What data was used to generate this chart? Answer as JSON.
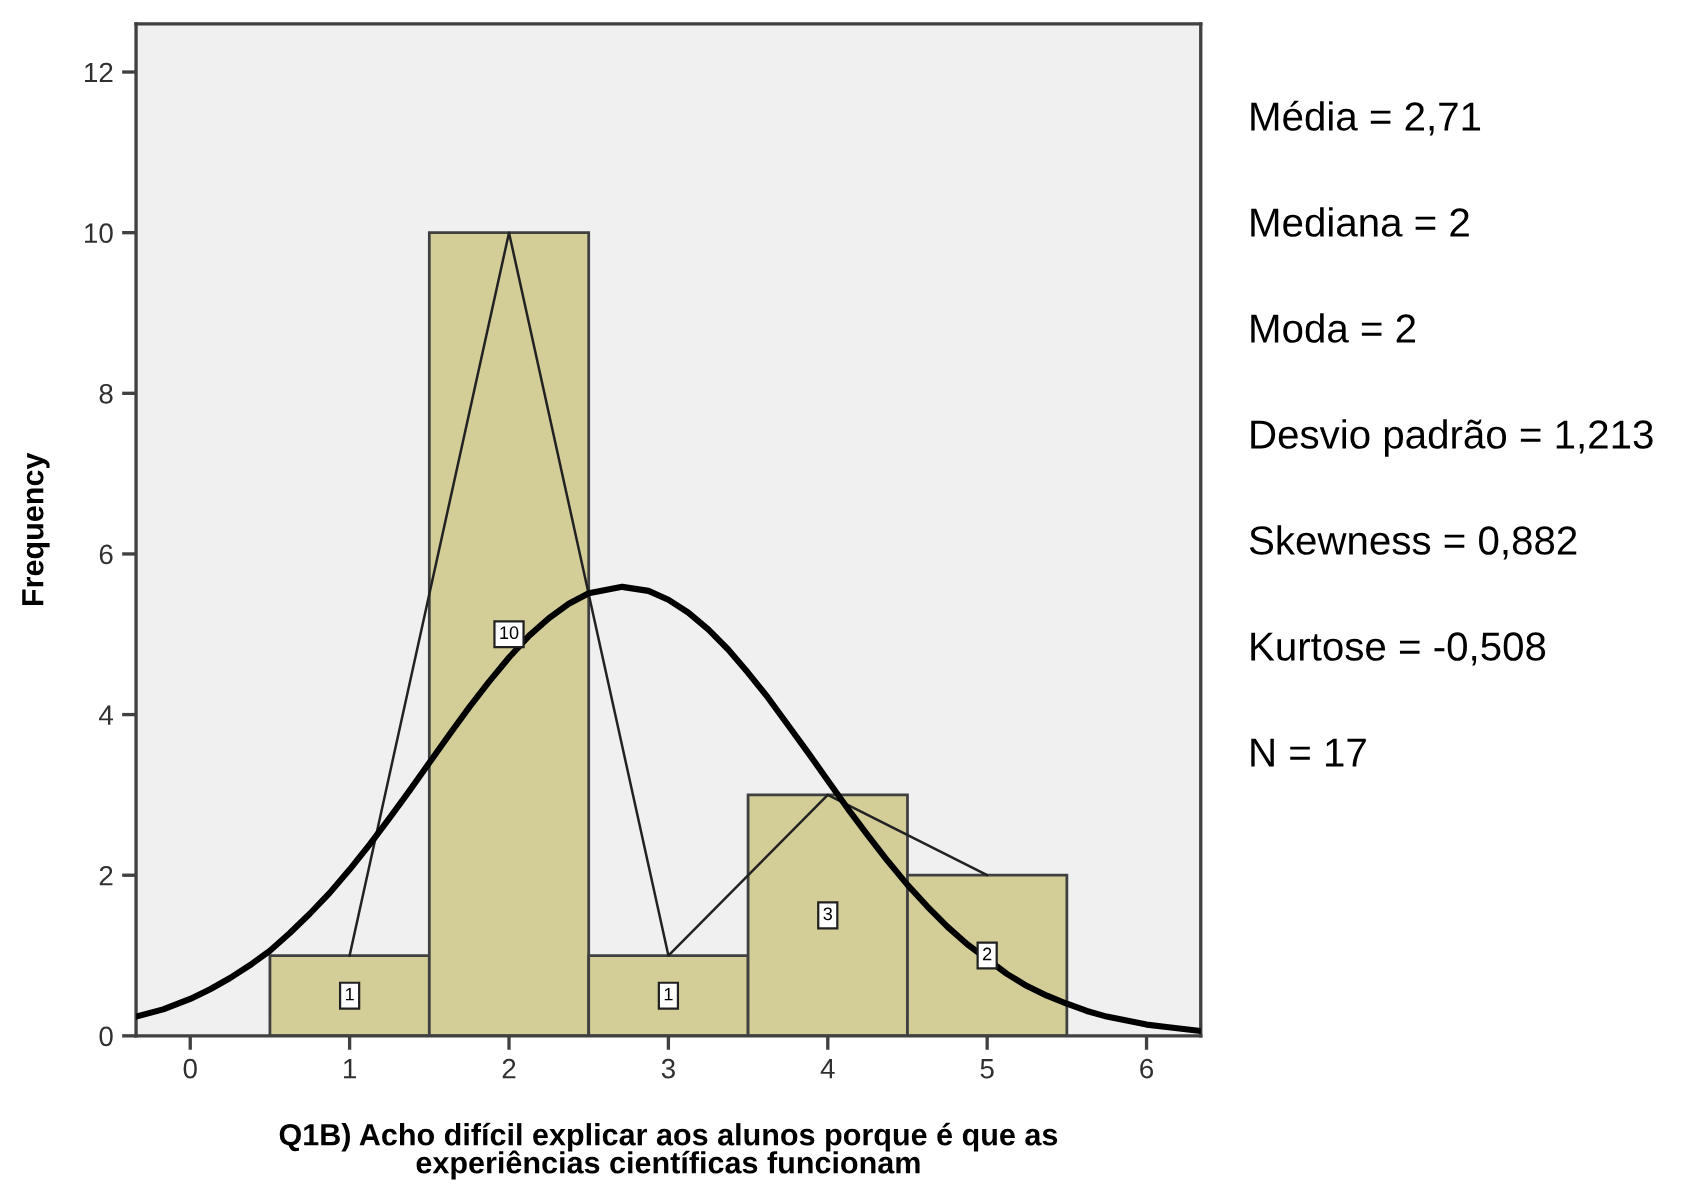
{
  "chart_data": {
    "type": "histogram",
    "xlabel": "Q1B) Acho difícil explicar aos alunos porque é que as\nexperiências científicas funcionam",
    "ylabel": "Frequency",
    "bins": [
      0.5,
      1.5,
      2.5,
      3.5,
      4.5,
      5.5
    ],
    "values": [
      1,
      10,
      1,
      3,
      2
    ],
    "value_labels": [
      "1",
      "10",
      "1",
      "3",
      "2"
    ],
    "color": "#d3ce98",
    "series": [
      {
        "type": "line",
        "x": [
          1,
          2,
          3,
          4,
          5
        ],
        "values": [
          1,
          10,
          1,
          3,
          2
        ],
        "color": "#222222"
      },
      {
        "type": "line",
        "x": [
          -0.34,
          -0.17,
          0,
          0.125,
          0.25,
          0.375,
          0.5,
          0.625,
          0.75,
          0.875,
          1.0,
          1.125,
          1.25,
          1.375,
          1.5,
          1.625,
          1.75,
          1.875,
          2.0,
          2.125,
          2.25,
          2.375,
          2.5,
          2.71,
          2.875,
          3.0,
          3.125,
          3.25,
          3.375,
          3.5,
          3.625,
          3.75,
          3.875,
          4.0,
          4.125,
          4.25,
          4.375,
          4.5,
          4.625,
          4.75,
          4.875,
          5.125,
          5.25,
          5.375,
          5.5,
          5.625,
          5.75,
          5.875,
          6.0,
          6.125,
          6.34
        ],
        "values": [
          0.24,
          0.33,
          0.46,
          0.58,
          0.72,
          0.88,
          1.06,
          1.28,
          1.52,
          1.78,
          2.07,
          2.38,
          2.71,
          3.05,
          3.4,
          3.75,
          4.09,
          4.41,
          4.71,
          4.98,
          5.2,
          5.38,
          5.51,
          5.59,
          5.54,
          5.43,
          5.27,
          5.06,
          4.81,
          4.52,
          4.21,
          3.87,
          3.53,
          3.18,
          2.83,
          2.5,
          2.18,
          1.88,
          1.61,
          1.36,
          1.14,
          0.77,
          0.62,
          0.5,
          0.4,
          0.31,
          0.24,
          0.19,
          0.14,
          0.11,
          0.06
        ],
        "color": "#000000"
      }
    ],
    "xlim": [
      -0.34,
      6.34
    ],
    "ylim": [
      0,
      12.6
    ],
    "xticks": [
      0,
      1,
      2,
      3,
      4,
      5,
      6
    ],
    "yticks": [
      0,
      2,
      4,
      6,
      8,
      10,
      12
    ],
    "grid": false,
    "annotations": [
      "Média = 2,71",
      "Mediana = 2",
      "Moda = 2",
      "Desvio padrão = 1,213",
      "Skewness = 0,882",
      "Kurtose = -0,508",
      "N = 17"
    ]
  }
}
